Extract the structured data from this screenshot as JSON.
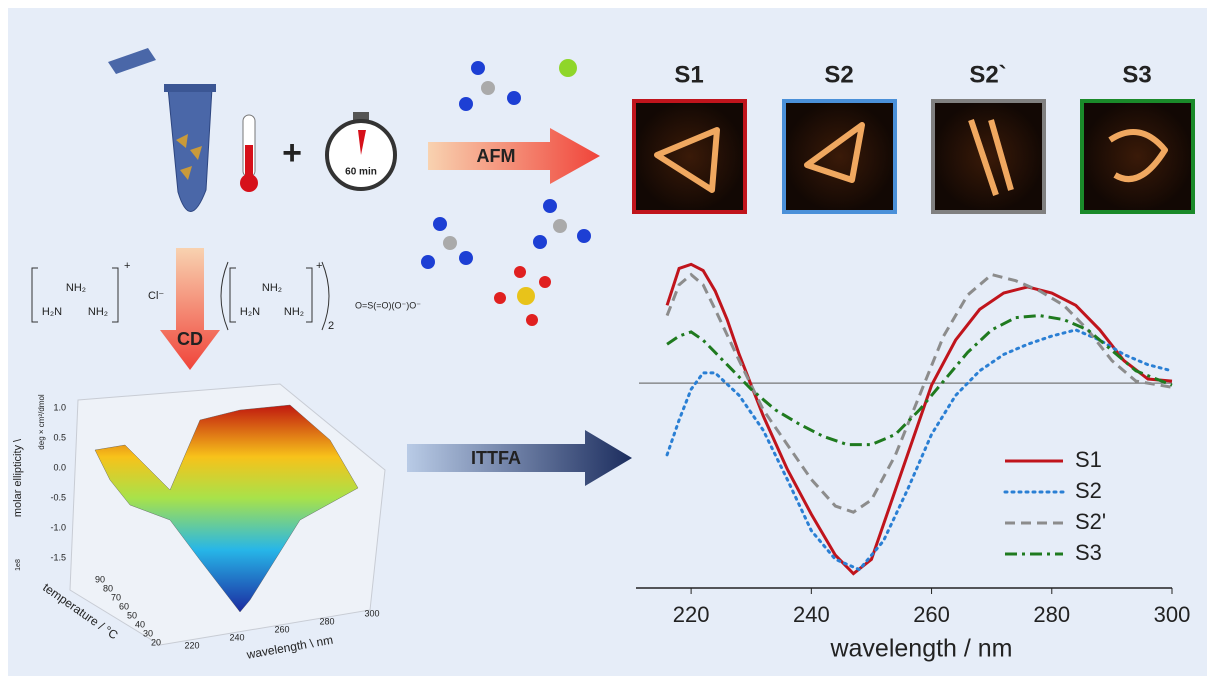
{
  "labels": {
    "timer": "60 min",
    "afm": "AFM",
    "cd": "CD",
    "ittfa": "ITTFA"
  },
  "afm_images": [
    {
      "label": "S1"
    },
    {
      "label": "S2"
    },
    {
      "label": "S2`"
    },
    {
      "label": "S3"
    }
  ],
  "chemistry": {
    "guanidinium_top": "NH₂",
    "guanidinium_left": "H₂N",
    "guanidinium_right": "NH₂",
    "charge": "+",
    "chloride": "Cl⁻",
    "sulfate_salt_top": "NH₂",
    "sulfate_salt_left": "H₂N",
    "sulfate_salt_right": "NH₂",
    "sulfate_salt_charge": "+",
    "sulfate_salt_count": "2",
    "sulfate": "O=S(=O)(O⁻)O⁻"
  },
  "surface_plot": {
    "z_label": "molar ellipticity \\",
    "z_unit": "deg × cm²/dmol",
    "z_scale": "1e8",
    "z_ticks": [
      "1.0",
      "0.5",
      "0.0",
      "-0.5",
      "-1.0",
      "-1.5"
    ],
    "y_label": "temperature / °C",
    "y_ticks": [
      90,
      80,
      70,
      60,
      50,
      40,
      30,
      20
    ],
    "x_label": "wavelength \\ nm",
    "x_ticks": [
      220,
      240,
      260,
      280,
      300
    ]
  },
  "chart_data": {
    "type": "line",
    "x_label": "wavelength / nm",
    "xlim": [
      210,
      300
    ],
    "xticks": [
      220,
      240,
      260,
      280,
      300
    ],
    "ylim": [
      -1,
      0.65
    ],
    "zero_line": true,
    "legend": "lower right",
    "series": [
      {
        "name": "S1",
        "color": "#c0141c",
        "dash": "solid",
        "x": [
          216,
          218,
          220,
          222,
          224,
          226,
          228,
          230,
          232,
          236,
          240,
          244,
          247,
          250,
          254,
          258,
          260,
          264,
          268,
          272,
          276,
          280,
          284,
          288,
          292,
          296,
          300
        ],
        "values": [
          0.38,
          0.56,
          0.58,
          0.55,
          0.45,
          0.31,
          0.14,
          -0.01,
          -0.16,
          -0.42,
          -0.64,
          -0.84,
          -0.93,
          -0.86,
          -0.52,
          -0.18,
          -0.01,
          0.21,
          0.36,
          0.44,
          0.47,
          0.44,
          0.38,
          0.26,
          0.11,
          0.02,
          0.01
        ]
      },
      {
        "name": "S2",
        "color": "#2a7fd4",
        "dash": "dotted",
        "x": [
          216,
          218,
          220,
          222,
          224,
          228,
          232,
          236,
          240,
          244,
          248,
          252,
          256,
          260,
          264,
          268,
          272,
          276,
          280,
          284,
          288,
          292,
          296,
          300
        ],
        "values": [
          -0.35,
          -0.18,
          -0.03,
          0.05,
          0.05,
          -0.06,
          -0.23,
          -0.47,
          -0.72,
          -0.86,
          -0.91,
          -0.77,
          -0.52,
          -0.25,
          -0.06,
          0.06,
          0.14,
          0.19,
          0.23,
          0.26,
          0.21,
          0.14,
          0.09,
          0.06
        ]
      },
      {
        "name": "S2'",
        "color": "#8c8c8c",
        "dash": "dashed",
        "x": [
          216,
          218,
          220,
          222,
          224,
          228,
          232,
          236,
          240,
          244,
          247,
          250,
          254,
          258,
          262,
          266,
          270,
          274,
          278,
          282,
          286,
          290,
          294,
          300
        ],
        "values": [
          0.33,
          0.48,
          0.53,
          0.48,
          0.36,
          0.11,
          -0.13,
          -0.3,
          -0.47,
          -0.6,
          -0.63,
          -0.57,
          -0.35,
          -0.06,
          0.23,
          0.43,
          0.53,
          0.5,
          0.45,
          0.38,
          0.26,
          0.11,
          0.01,
          -0.02
        ]
      },
      {
        "name": "S3",
        "color": "#1f7a1f",
        "dash": "dashdot",
        "x": [
          216,
          218,
          220,
          222,
          226,
          230,
          234,
          238,
          242,
          246,
          250,
          254,
          258,
          262,
          266,
          270,
          274,
          278,
          282,
          286,
          290,
          294,
          300
        ],
        "values": [
          0.19,
          0.23,
          0.25,
          0.21,
          0.09,
          -0.03,
          -0.13,
          -0.2,
          -0.26,
          -0.3,
          -0.3,
          -0.25,
          -0.13,
          0.01,
          0.15,
          0.26,
          0.32,
          0.33,
          0.31,
          0.26,
          0.16,
          0.06,
          -0.01
        ]
      }
    ]
  }
}
